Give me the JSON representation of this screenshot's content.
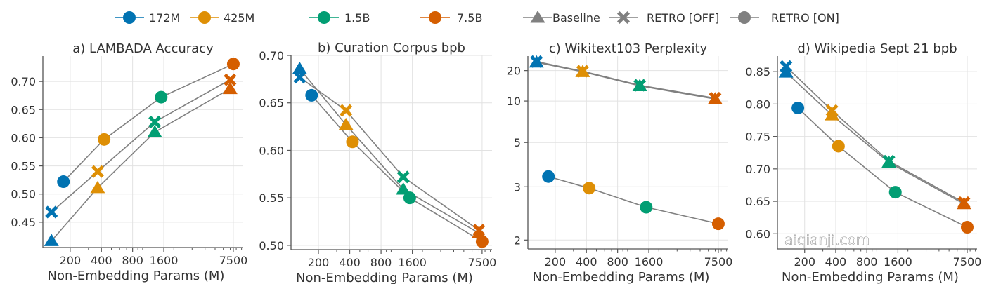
{
  "legend": {
    "placement": "top",
    "sizes": [
      {
        "label": "172M",
        "color": "#0173b2"
      },
      {
        "label": "425M",
        "color": "#de8f05"
      },
      {
        "label": "1.5B",
        "color": "#029e73"
      },
      {
        "label": "7.5B",
        "color": "#d55e00"
      }
    ],
    "types": [
      {
        "label": "Baseline",
        "marker": "triangle"
      },
      {
        "label": "RETRO [OFF]",
        "marker": "x"
      },
      {
        "label": "RETRO [ON]",
        "marker": "circle"
      }
    ],
    "line_color": "#808080"
  },
  "watermark": "aiqianji.com",
  "chart_data": [
    {
      "type": "line",
      "title": "a) LAMBADA Accuracy",
      "xlabel": "Non-Embedding Params (M)",
      "xscale": "log",
      "xlim": [
        109,
        9340
      ],
      "xticks": [
        200,
        400,
        800,
        1600,
        7500
      ],
      "yscale": "linear",
      "ylim": [
        0.405,
        0.745
      ],
      "yticks": [
        0.45,
        0.5,
        0.55,
        0.6,
        0.65,
        0.7
      ],
      "grid": true,
      "series": [
        {
          "name": "Baseline",
          "marker": "triangle",
          "x": [
            132,
            368,
            1309,
            6982
          ],
          "y": [
            0.417,
            0.511,
            0.61,
            0.687
          ]
        },
        {
          "name": "RETRO [OFF]",
          "marker": "x",
          "x": [
            132,
            368,
            1309,
            6982
          ],
          "y": [
            0.468,
            0.54,
            0.628,
            0.703
          ]
        },
        {
          "name": "RETRO [ON]",
          "marker": "circle",
          "x": [
            172,
            425,
            1510,
            7500
          ],
          "y": [
            0.522,
            0.597,
            0.672,
            0.731
          ]
        }
      ]
    },
    {
      "type": "line",
      "title": "b) Curation Corpus bpb",
      "xlabel": "Non-Embedding Params (M)",
      "xscale": "log",
      "xlim": [
        109,
        9340
      ],
      "xticks": [
        200,
        400,
        800,
        1600,
        7500
      ],
      "yscale": "linear",
      "ylim": [
        0.4955,
        0.7
      ],
      "yticks": [
        0.5,
        0.55,
        0.6,
        0.65,
        0.7
      ],
      "grid": true,
      "series": [
        {
          "name": "Baseline",
          "marker": "triangle",
          "x": [
            132,
            368,
            1309,
            6982
          ],
          "y": [
            0.686,
            0.627,
            0.559,
            0.513
          ]
        },
        {
          "name": "RETRO [OFF]",
          "marker": "x",
          "x": [
            132,
            368,
            1309,
            6982
          ],
          "y": [
            0.677,
            0.642,
            0.572,
            0.516
          ]
        },
        {
          "name": "RETRO [ON]",
          "marker": "circle",
          "x": [
            172,
            425,
            1510,
            7500
          ],
          "y": [
            0.658,
            0.609,
            0.55,
            0.504
          ]
        }
      ]
    },
    {
      "type": "line",
      "title": "c) Wikitext103 Perplexity",
      "xlabel": "Non-Embedding Params (M)",
      "xscale": "log",
      "xlim": [
        109,
        9340
      ],
      "xticks": [
        200,
        400,
        800,
        1600,
        7500
      ],
      "yscale": "loglog",
      "ylim": [
        1.9,
        29.8
      ],
      "yticks": [
        2,
        3,
        5,
        10,
        20
      ],
      "grid": true,
      "series": [
        {
          "name": "Baseline",
          "marker": "triangle",
          "x": [
            132,
            368,
            1309,
            6982
          ],
          "y": [
            25.0,
            19.4,
            13.8,
            10.4
          ]
        },
        {
          "name": "RETRO [OFF]",
          "marker": "x",
          "x": [
            132,
            368,
            1309,
            6982
          ],
          "y": [
            25.5,
            19.7,
            14.0,
            10.6
          ]
        },
        {
          "name": "RETRO [ON]",
          "marker": "circle",
          "x": [
            172,
            425,
            1510,
            7500
          ],
          "y": [
            3.32,
            2.96,
            2.51,
            2.22
          ]
        }
      ]
    },
    {
      "type": "line",
      "title": "d) Wikipedia Sept 21 bpb",
      "xlabel": "Non-Embedding Params (M)",
      "xscale": "log",
      "xlim": [
        109,
        9340
      ],
      "xticks": [
        200,
        400,
        800,
        1600,
        7500
      ],
      "yscale": "linear",
      "ylim": [
        0.5765,
        0.874
      ],
      "yticks": [
        0.6,
        0.65,
        0.7,
        0.75,
        0.8,
        0.85
      ],
      "grid": true,
      "series": [
        {
          "name": "Baseline",
          "marker": "triangle",
          "x": [
            132,
            368,
            1309,
            6982
          ],
          "y": [
            0.849,
            0.783,
            0.71,
            0.646
          ]
        },
        {
          "name": "RETRO [OFF]",
          "marker": "x",
          "x": [
            132,
            368,
            1309,
            6982
          ],
          "y": [
            0.858,
            0.79,
            0.712,
            0.648
          ]
        },
        {
          "name": "RETRO [ON]",
          "marker": "circle",
          "x": [
            172,
            425,
            1510,
            7500
          ],
          "y": [
            0.794,
            0.735,
            0.664,
            0.61
          ]
        }
      ]
    }
  ]
}
